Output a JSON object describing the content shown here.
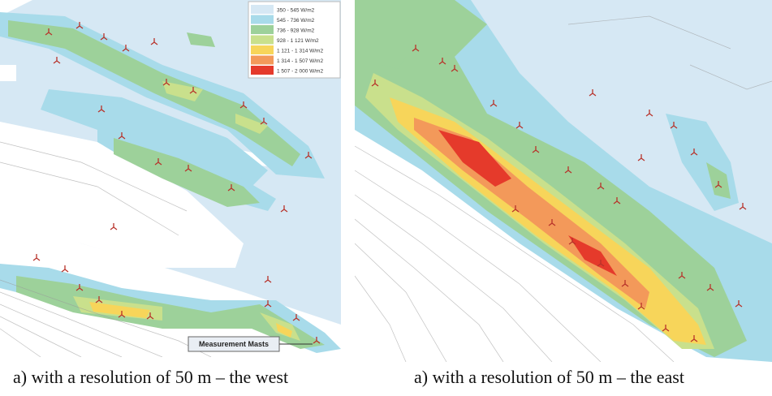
{
  "legend": {
    "items": [
      {
        "label": "350 - 545 W/m2",
        "color": "#d6e8f4"
      },
      {
        "label": "545 - 736 W/m2",
        "color": "#a8dbea"
      },
      {
        "label": "736 - 928 W/m2",
        "color": "#9dd19a"
      },
      {
        "label": "928 - 1 121 W/m2",
        "color": "#c9e08c"
      },
      {
        "label": "1 121 - 1 314 W/m2",
        "color": "#f7d55a"
      },
      {
        "label": "1 314 - 1 507 W/m2",
        "color": "#f3995a"
      },
      {
        "label": "1 507 - 2 000 W/m2",
        "color": "#e53a2b"
      }
    ]
  },
  "callout": "Measurement Masts",
  "captions": [
    "a) with a resolution of 50 m – the west",
    "a) with a resolution of 50 m – the east"
  ]
}
